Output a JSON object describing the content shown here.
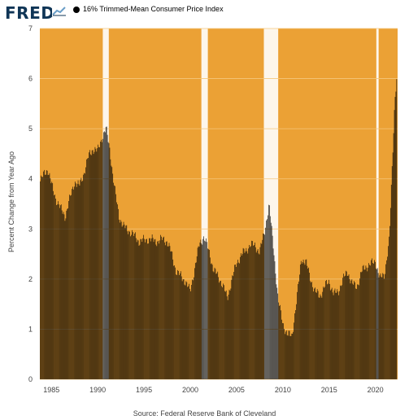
{
  "header": {
    "logo_text": "FRED",
    "legend_label": "16% Trimmed-Mean Consumer Price Index"
  },
  "footer": {
    "source": "Source: Federal Reserve Bank of Cleveland"
  },
  "colors": {
    "recession_fill": "#ffffff",
    "plot_background": "#eba135",
    "bar_color": "#000000",
    "gridline": "#f5c77c",
    "axis_text": "#444444"
  },
  "chart_data": {
    "type": "bar",
    "title": "",
    "xlabel": "",
    "ylabel": "Percent Change from Year Ago",
    "ylim": [
      0,
      7
    ],
    "xlim": [
      1983.75,
      2022.4
    ],
    "y_ticks": [
      0,
      1,
      2,
      3,
      4,
      5,
      6,
      7
    ],
    "x_ticks": [
      1985,
      1990,
      1995,
      2000,
      2005,
      2010,
      2015,
      2020
    ],
    "grid": true,
    "legend_position": "top-left",
    "shaded_periods": [
      {
        "start": 1990.55,
        "end": 1991.2
      },
      {
        "start": 2001.2,
        "end": 2001.9
      },
      {
        "start": 2007.95,
        "end": 2009.5
      },
      {
        "start": 2020.1,
        "end": 2020.35
      }
    ],
    "series": [
      {
        "name": "16% Trimmed-Mean Consumer Price Index",
        "anchors": [
          [
            1983.8,
            3.95
          ],
          [
            1984.2,
            4.1
          ],
          [
            1984.6,
            4.2
          ],
          [
            1985.0,
            3.9
          ],
          [
            1985.5,
            3.6
          ],
          [
            1986.0,
            3.4
          ],
          [
            1986.5,
            3.25
          ],
          [
            1987.0,
            3.6
          ],
          [
            1987.5,
            3.95
          ],
          [
            1988.0,
            3.85
          ],
          [
            1988.5,
            4.1
          ],
          [
            1989.0,
            4.45
          ],
          [
            1989.5,
            4.6
          ],
          [
            1990.0,
            4.55
          ],
          [
            1990.5,
            4.85
          ],
          [
            1990.9,
            5.0
          ],
          [
            1991.3,
            4.6
          ],
          [
            1991.8,
            3.85
          ],
          [
            1992.3,
            3.25
          ],
          [
            1992.8,
            3.05
          ],
          [
            1993.5,
            2.95
          ],
          [
            1994.5,
            2.75
          ],
          [
            1995.5,
            2.8
          ],
          [
            1996.5,
            2.75
          ],
          [
            1997.0,
            2.8
          ],
          [
            1997.5,
            2.75
          ],
          [
            1998.0,
            2.5
          ],
          [
            1998.5,
            2.15
          ],
          [
            1999.0,
            2.05
          ],
          [
            1999.5,
            1.95
          ],
          [
            2000.0,
            1.75
          ],
          [
            2000.5,
            2.25
          ],
          [
            2001.0,
            2.7
          ],
          [
            2001.5,
            2.85
          ],
          [
            2002.0,
            2.55
          ],
          [
            2002.5,
            2.2
          ],
          [
            2003.0,
            2.05
          ],
          [
            2003.5,
            1.9
          ],
          [
            2004.0,
            1.6
          ],
          [
            2004.5,
            2.0
          ],
          [
            2005.0,
            2.3
          ],
          [
            2005.5,
            2.5
          ],
          [
            2006.0,
            2.55
          ],
          [
            2006.5,
            2.7
          ],
          [
            2007.0,
            2.65
          ],
          [
            2007.5,
            2.55
          ],
          [
            2008.0,
            2.9
          ],
          [
            2008.5,
            3.5
          ],
          [
            2009.0,
            2.6
          ],
          [
            2009.5,
            1.6
          ],
          [
            2010.0,
            1.1
          ],
          [
            2010.5,
            0.9
          ],
          [
            2011.0,
            0.85
          ],
          [
            2011.5,
            1.6
          ],
          [
            2012.0,
            2.4
          ],
          [
            2012.5,
            2.35
          ],
          [
            2013.0,
            2.0
          ],
          [
            2013.5,
            1.75
          ],
          [
            2014.0,
            1.65
          ],
          [
            2014.5,
            1.85
          ],
          [
            2015.0,
            1.95
          ],
          [
            2015.5,
            1.7
          ],
          [
            2016.0,
            1.75
          ],
          [
            2016.5,
            2.0
          ],
          [
            2017.0,
            2.15
          ],
          [
            2017.5,
            1.9
          ],
          [
            2018.0,
            1.85
          ],
          [
            2018.5,
            2.15
          ],
          [
            2019.0,
            2.25
          ],
          [
            2019.5,
            2.3
          ],
          [
            2020.0,
            2.35
          ],
          [
            2020.5,
            2.0
          ],
          [
            2021.0,
            2.1
          ],
          [
            2021.5,
            2.8
          ],
          [
            2021.8,
            4.2
          ],
          [
            2022.1,
            5.6
          ],
          [
            2022.35,
            6.1
          ]
        ]
      }
    ]
  }
}
